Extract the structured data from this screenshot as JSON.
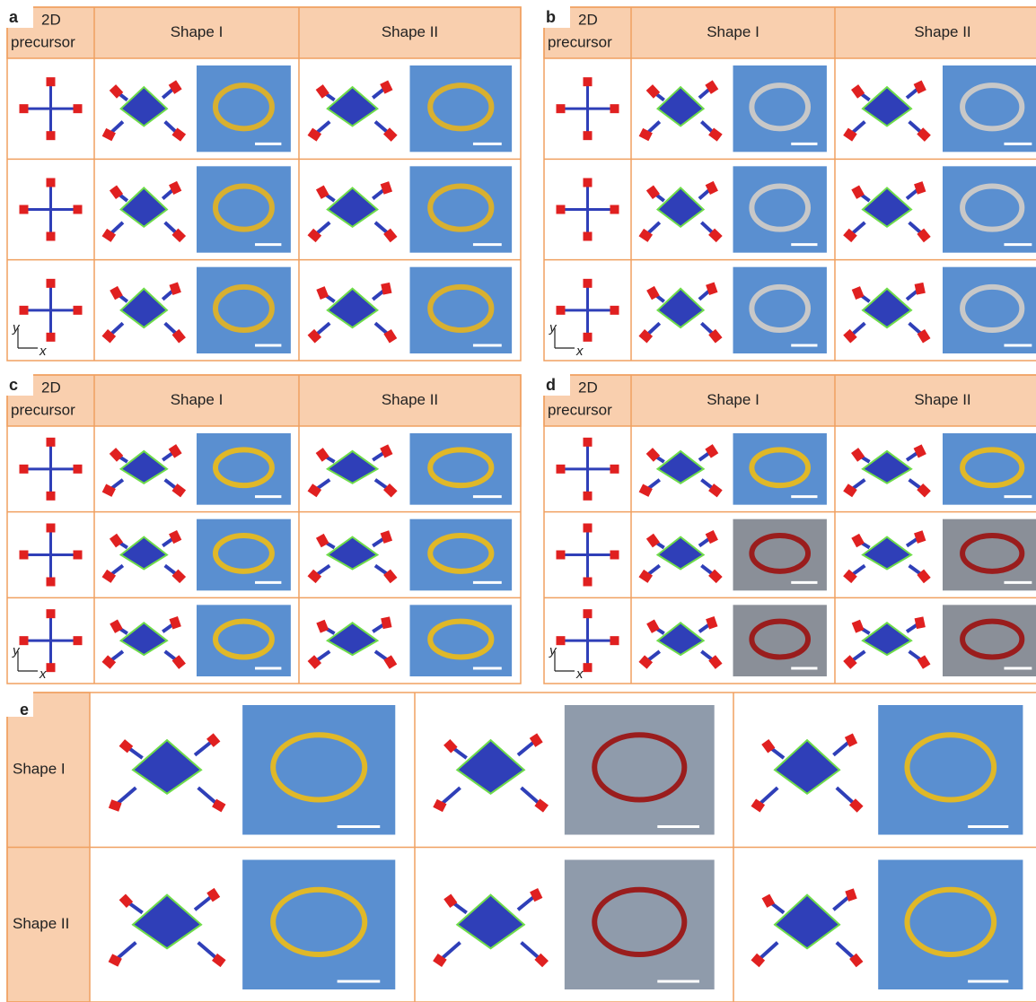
{
  "panels": [
    {
      "label": "a",
      "header": {
        "precursor_lines": [
          "2D",
          "precursor"
        ],
        "columns": [
          "Shape I",
          "Shape II"
        ]
      },
      "axes": {
        "y": "y",
        "x": "x"
      }
    },
    {
      "label": "b",
      "header": {
        "precursor_lines": [
          "2D",
          "precursor"
        ],
        "columns": [
          "Shape I",
          "Shape II"
        ]
      },
      "axes": {
        "y": "y",
        "x": "x"
      }
    },
    {
      "label": "c",
      "header": {
        "precursor_lines": [
          "2D",
          "precursor"
        ],
        "columns": [
          "Shape I",
          "Shape II"
        ]
      },
      "axes": {
        "y": "y",
        "x": "x"
      }
    },
    {
      "label": "d",
      "header": {
        "precursor_lines": [
          "2D",
          "precursor"
        ],
        "columns": [
          "Shape I",
          "Shape II"
        ]
      },
      "axes": {
        "y": "y",
        "x": "x"
      }
    }
  ],
  "panel_e": {
    "label": "e",
    "rows": [
      "Shape I",
      "Shape II"
    ]
  }
}
